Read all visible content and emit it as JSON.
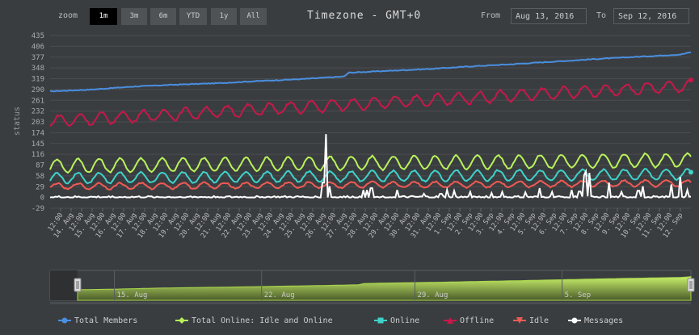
{
  "toolbar": {
    "zoom_label": "zoom",
    "zoom_buttons": [
      "1m",
      "3m",
      "6m",
      "YTD",
      "1y",
      "All"
    ],
    "active_zoom": "1m",
    "title": "Timezone - GMT+0",
    "from_label": "From",
    "from_value": "Aug 13, 2016",
    "to_label": "To",
    "to_value": "Sep 12, 2016"
  },
  "colors": {
    "total_members": "#4a8fe0",
    "total_online": "#b8f25a",
    "online": "#3fd2c9",
    "offline": "#c8184a",
    "idle": "#f05a54",
    "messages": "#ffffff"
  },
  "chart_data": {
    "type": "line",
    "ylabel": "status",
    "yticks": [
      -29,
      0,
      29,
      58,
      87,
      116,
      145,
      174,
      203,
      232,
      261,
      290,
      319,
      348,
      377,
      406,
      435
    ],
    "ylim": [
      -29,
      435
    ],
    "xticks": [
      "12:00",
      "14. Aug",
      "12:00",
      "15. Aug",
      "12:00",
      "16. Aug",
      "12:00",
      "17. Aug",
      "12:00",
      "18. Aug",
      "12:00",
      "19. Aug",
      "12:00",
      "20. Aug",
      "12:00",
      "21. Aug",
      "12:00",
      "22. Aug",
      "12:00",
      "23. Aug",
      "12:00",
      "24. Aug",
      "12:00",
      "25. Aug",
      "12:00",
      "26. Aug",
      "12:00",
      "27. Aug",
      "12:00",
      "28. Aug",
      "12:00",
      "29. Aug",
      "12:00",
      "30. Aug",
      "12:00",
      "31. Aug",
      "12:00",
      "1. Sep",
      "12:00",
      "2. Sep",
      "12:00",
      "3. Sep",
      "12:00",
      "4. Sep",
      "12:00",
      "5. Sep",
      "12:00",
      "6. Sep",
      "12:00",
      "7. Sep",
      "12:00",
      "8. Sep",
      "12:00",
      "9. Sep",
      "12:00",
      "10. Sep",
      "12:00",
      "11. Sep",
      "12:00",
      "12. Sep"
    ],
    "days_covered": 30.5,
    "series": [
      {
        "name": "Total Members",
        "key": "total_members",
        "marker": "circle",
        "anchors": [
          [
            0,
            285
          ],
          [
            2,
            290
          ],
          [
            4,
            298
          ],
          [
            6,
            303
          ],
          [
            8,
            307
          ],
          [
            10,
            313
          ],
          [
            12,
            318
          ],
          [
            14,
            325
          ],
          [
            14.2,
            335
          ],
          [
            16,
            340
          ],
          [
            18,
            345
          ],
          [
            20,
            352
          ],
          [
            22,
            358
          ],
          [
            24,
            365
          ],
          [
            26,
            372
          ],
          [
            28,
            378
          ],
          [
            30,
            384
          ],
          [
            30.5,
            390
          ]
        ]
      },
      {
        "name": "Total Online: Idle and Online",
        "key": "total_online",
        "marker": "diamond",
        "base": 85,
        "amp": 18,
        "end_base": 100
      },
      {
        "name": "Online",
        "key": "online",
        "marker": "square",
        "base": 52,
        "amp": 14,
        "end_base": 62
      },
      {
        "name": "Offline",
        "key": "offline",
        "marker": "triangle",
        "base_start": 205,
        "base_end": 300,
        "amp": 15
      },
      {
        "name": "Idle",
        "key": "idle",
        "marker": "triangle-down",
        "base": 30,
        "amp": 8,
        "end_base": 38
      },
      {
        "name": "Messages",
        "key": "messages",
        "marker": "circle",
        "spikes": [
          [
            13.1,
            170
          ],
          [
            13.0,
            40
          ],
          [
            13.3,
            30
          ],
          [
            14.9,
            20
          ],
          [
            15.1,
            20
          ],
          [
            15.3,
            25
          ],
          [
            16.5,
            20
          ],
          [
            17.8,
            10
          ],
          [
            18.6,
            10
          ],
          [
            18.9,
            20
          ],
          [
            19.2,
            18
          ],
          [
            20.0,
            15
          ],
          [
            21.0,
            12
          ],
          [
            21.5,
            15
          ],
          [
            22.6,
            14
          ],
          [
            23.3,
            25
          ],
          [
            23.9,
            15
          ],
          [
            24.8,
            20
          ],
          [
            25.2,
            16
          ],
          [
            25.4,
            60
          ],
          [
            25.5,
            70
          ],
          [
            25.7,
            66
          ],
          [
            26.6,
            40
          ],
          [
            27.2,
            15
          ],
          [
            28.0,
            18
          ],
          [
            28.2,
            30
          ],
          [
            29.6,
            35
          ],
          [
            30.0,
            55
          ],
          [
            30.3,
            20
          ]
        ],
        "noise": 6
      }
    ],
    "navigator": {
      "labels": [
        "15. Aug",
        "22. Aug",
        "29. Aug",
        "5. Sep"
      ]
    }
  }
}
